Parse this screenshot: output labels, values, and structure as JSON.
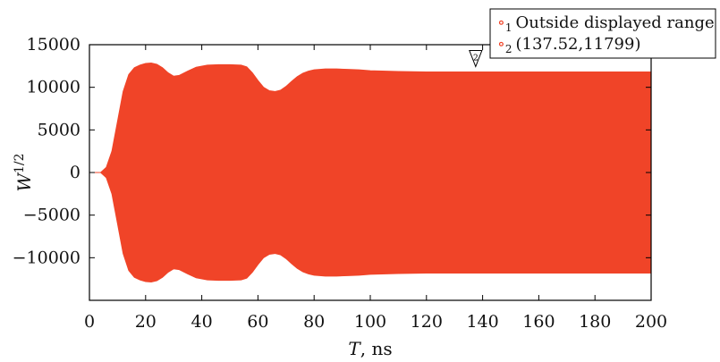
{
  "chart_data": {
    "type": "area",
    "title": "",
    "xlabel_var": "T",
    "xlabel_unit": ", ns",
    "ylabel_base": "W",
    "ylabel_exp": "1/2",
    "xlim": [
      0,
      200
    ],
    "ylim": [
      -15000,
      15000
    ],
    "xticks": [
      0,
      20,
      40,
      60,
      80,
      100,
      120,
      140,
      160,
      180,
      200
    ],
    "yticks": [
      15000,
      10000,
      5000,
      0,
      -5000,
      -10000
    ],
    "ytick_labels": [
      "15000",
      "10000",
      "5000",
      "0",
      "−5000",
      "−10000"
    ],
    "grid": false,
    "fill_color": "#f04428",
    "series": [
      {
        "envelope": {
          "x": [
            0,
            4,
            6,
            8,
            10,
            12,
            14,
            16,
            18,
            20,
            22,
            24,
            26,
            28,
            30,
            32,
            35,
            38,
            42,
            46,
            50,
            54,
            56,
            58,
            60,
            62,
            64,
            66,
            68,
            70,
            72,
            74,
            76,
            78,
            80,
            84,
            88,
            92,
            96,
            100,
            110,
            120,
            130,
            140,
            150,
            160,
            170,
            180,
            190,
            200
          ],
          "upper": [
            0,
            0,
            600,
            2500,
            6000,
            9500,
            11500,
            12300,
            12600,
            12800,
            12850,
            12700,
            12300,
            11700,
            11300,
            11400,
            11900,
            12350,
            12600,
            12650,
            12650,
            12600,
            12400,
            11700,
            10800,
            10000,
            9600,
            9500,
            9650,
            10100,
            10700,
            11250,
            11650,
            11900,
            12050,
            12150,
            12150,
            12100,
            12050,
            11950,
            11850,
            11800,
            11800,
            11799,
            11800,
            11800,
            11800,
            11800,
            11800,
            11800
          ]
        }
      }
    ],
    "legend": [
      {
        "marker": "∘",
        "index": "1",
        "text": "Outside displayed range"
      },
      {
        "marker": "∘",
        "index": "2",
        "text": "(137.52,11799)"
      }
    ],
    "legend_position": "top-right",
    "annotation": {
      "label": "2",
      "x": 137.52,
      "y": 11799
    }
  }
}
